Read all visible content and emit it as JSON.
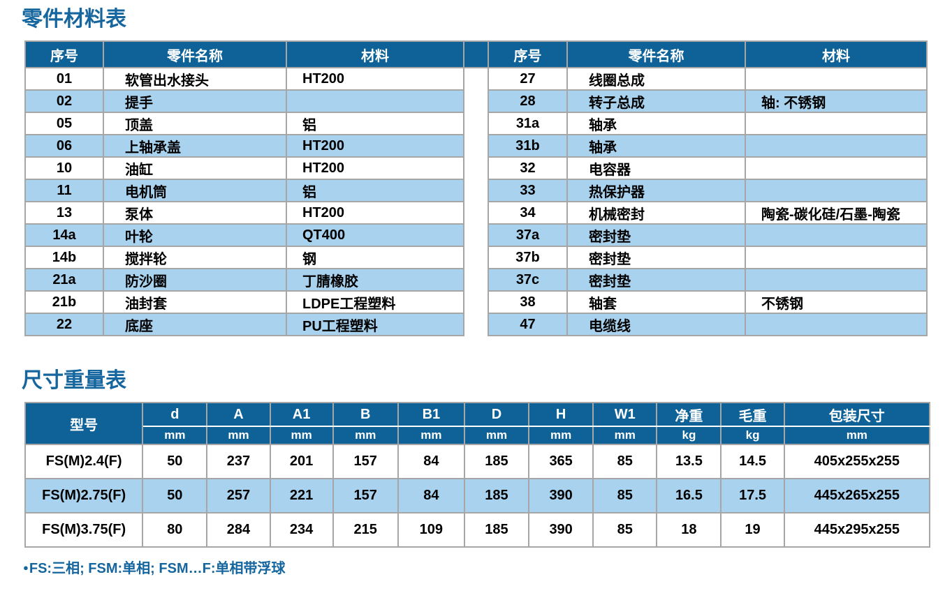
{
  "colors": {
    "header_blue": "#0e6297",
    "row_alt_blue": "#a9d2ee",
    "title_blue": "#15669e",
    "border_gray": "#a6a6a6"
  },
  "parts_section": {
    "title": "零件材料表",
    "columns": [
      "序号",
      "零件名称",
      "材料"
    ],
    "left_rows": [
      {
        "no": "01",
        "name": "软管出水接头",
        "material": "HT200"
      },
      {
        "no": "02",
        "name": "提手",
        "material": ""
      },
      {
        "no": "05",
        "name": "顶盖",
        "material": "铝"
      },
      {
        "no": "06",
        "name": "上轴承盖",
        "material": "HT200"
      },
      {
        "no": "10",
        "name": "油缸",
        "material": "HT200"
      },
      {
        "no": "11",
        "name": "电机筒",
        "material": "铝"
      },
      {
        "no": "13",
        "name": "泵体",
        "material": "HT200"
      },
      {
        "no": "14a",
        "name": "叶轮",
        "material": "QT400"
      },
      {
        "no": "14b",
        "name": "搅拌轮",
        "material": "钢"
      },
      {
        "no": "21a",
        "name": "防沙圈",
        "material": "丁腈橡胶"
      },
      {
        "no": "21b",
        "name": "油封套",
        "material": "LDPE工程塑料"
      },
      {
        "no": "22",
        "name": "底座",
        "material": "PU工程塑料"
      }
    ],
    "right_rows": [
      {
        "no": "27",
        "name": "线圈总成",
        "material": ""
      },
      {
        "no": "28",
        "name": "转子总成",
        "material": "轴: 不锈钢"
      },
      {
        "no": "31a",
        "name": "轴承",
        "material": ""
      },
      {
        "no": "31b",
        "name": "轴承",
        "material": ""
      },
      {
        "no": "32",
        "name": "电容器",
        "material": ""
      },
      {
        "no": "33",
        "name": "热保护器",
        "material": ""
      },
      {
        "no": "34",
        "name": "机械密封",
        "material": "陶瓷-碳化硅/石墨-陶瓷"
      },
      {
        "no": "37a",
        "name": "密封垫",
        "material": ""
      },
      {
        "no": "37b",
        "name": "密封垫",
        "material": ""
      },
      {
        "no": "37c",
        "name": "密封垫",
        "material": ""
      },
      {
        "no": "38",
        "name": "轴套",
        "material": "不锈钢"
      },
      {
        "no": "47",
        "name": "电缆线",
        "material": ""
      }
    ]
  },
  "dimensions_section": {
    "title": "尺寸重量表",
    "model_label": "型号",
    "columns": [
      {
        "label": "d",
        "unit": "mm"
      },
      {
        "label": "A",
        "unit": "mm"
      },
      {
        "label": "A1",
        "unit": "mm"
      },
      {
        "label": "B",
        "unit": "mm"
      },
      {
        "label": "B1",
        "unit": "mm"
      },
      {
        "label": "D",
        "unit": "mm"
      },
      {
        "label": "H",
        "unit": "mm"
      },
      {
        "label": "W1",
        "unit": "mm"
      },
      {
        "label": "净重",
        "unit": "kg"
      },
      {
        "label": "毛重",
        "unit": "kg"
      },
      {
        "label": "包装尺寸",
        "unit": "mm"
      }
    ],
    "rows": [
      {
        "model": "FS(M)2.4(F)",
        "values": [
          "50",
          "237",
          "201",
          "157",
          "84",
          "185",
          "365",
          "85",
          "13.5",
          "14.5",
          "405x255x255"
        ]
      },
      {
        "model": "FS(M)2.75(F)",
        "values": [
          "50",
          "257",
          "221",
          "157",
          "84",
          "185",
          "390",
          "85",
          "16.5",
          "17.5",
          "445x265x255"
        ]
      },
      {
        "model": "FS(M)3.75(F)",
        "values": [
          "80",
          "284",
          "234",
          "215",
          "109",
          "185",
          "390",
          "85",
          "18",
          "19",
          "445x295x255"
        ]
      }
    ],
    "bullet_icon": "●",
    "footnote": "FS:三相; FSM:单相; FSM…F:单相带浮球"
  }
}
